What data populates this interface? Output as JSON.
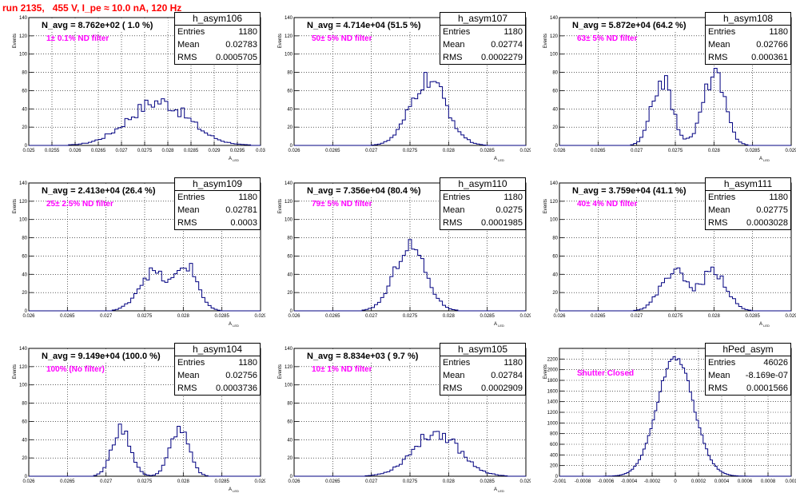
{
  "run_title": "run 2135,   455 V, I_pe ≈ 10.0 nA, 120 Hz",
  "colors": {
    "hist": "#000080",
    "label": "#ff00ff",
    "title": "#ff0000"
  },
  "stats_labels": {
    "entries": "Entries",
    "mean": "Mean",
    "rms": "RMS"
  },
  "chart_data": [
    {
      "type": "histogram",
      "name": "h_asym106",
      "title": "N_avg = 8.762e+02 ( 1.0 %)",
      "label": "1± 0.1% ND filter",
      "stats": {
        "entries": "1180",
        "mean": "0.02783",
        "rms": "0.0005705"
      },
      "xlabel": "A_{LED}",
      "ylabel": "Events",
      "xlim": [
        0.025,
        0.03
      ],
      "ylim": [
        0,
        140
      ],
      "xticks": [
        "0.025",
        "0.0255",
        "0.026",
        "0.0265",
        "0.027",
        "0.0275",
        "0.028",
        "0.0285",
        "0.029",
        "0.0295",
        "0.03"
      ],
      "yticks": [
        "0",
        "20",
        "40",
        "60",
        "80",
        "100",
        "120",
        "140"
      ],
      "center": 0.0278,
      "sigma": 0.00065,
      "peak": 48,
      "noise": 0.18,
      "bins": 70
    },
    {
      "type": "histogram",
      "name": "h_asym107",
      "title": "N_avg = 4.714e+04 (51.5 %)",
      "label": "50± 5% ND filter",
      "stats": {
        "entries": "1180",
        "mean": "0.02774",
        "rms": "0.0002279"
      },
      "xlabel": "A_{LED}",
      "ylabel": "Events",
      "xlim": [
        0.026,
        0.029
      ],
      "ylim": [
        0,
        140
      ],
      "xticks": [
        "0.026",
        "0.0265",
        "0.027",
        "0.0275",
        "0.028",
        "0.0285",
        "0.029"
      ],
      "yticks": [
        "0",
        "20",
        "40",
        "60",
        "80",
        "100",
        "120",
        "140"
      ],
      "center": 0.02774,
      "sigma": 0.00023,
      "peak": 72,
      "noise": 0.15,
      "bins": 75
    },
    {
      "type": "histogram",
      "name": "h_asym108",
      "title": "N_avg = 5.872e+04 (64.2 %)",
      "label": "63± 5% ND filter",
      "stats": {
        "entries": "1180",
        "mean": "0.02766",
        "rms": "0.000361"
      },
      "xlabel": "A_{LED}",
      "ylabel": "Events",
      "xlim": [
        0.026,
        0.029
      ],
      "ylim": [
        0,
        140
      ],
      "xticks": [
        "0.026",
        "0.0265",
        "0.027",
        "0.0275",
        "0.028",
        "0.0285",
        "0.029"
      ],
      "yticks": [
        "0",
        "20",
        "40",
        "60",
        "80",
        "100",
        "120",
        "140"
      ],
      "peaks": [
        {
          "c": 0.02733,
          "s": 0.00013,
          "h": 72
        },
        {
          "c": 0.028,
          "s": 0.00014,
          "h": 78
        }
      ],
      "noise": 0.15,
      "bins": 75
    },
    {
      "type": "histogram",
      "name": "h_asym109",
      "title": "N_avg = 2.413e+04 (26.4 %)",
      "label": "25± 2.5% ND filter",
      "stats": {
        "entries": "1180",
        "mean": "0.02781",
        "rms": "0.0003"
      },
      "xlabel": "A_{LED}",
      "ylabel": "Events",
      "xlim": [
        0.026,
        0.029
      ],
      "ylim": [
        0,
        140
      ],
      "xticks": [
        "0.026",
        "0.0265",
        "0.027",
        "0.0275",
        "0.028",
        "0.0285",
        "0.029"
      ],
      "yticks": [
        "0",
        "20",
        "40",
        "60",
        "80",
        "100",
        "120",
        "140"
      ],
      "peaks": [
        {
          "c": 0.0276,
          "s": 0.00018,
          "h": 42
        },
        {
          "c": 0.02805,
          "s": 0.00014,
          "h": 48
        }
      ],
      "noise": 0.15,
      "bins": 75
    },
    {
      "type": "histogram",
      "name": "h_asym110",
      "title": "N_avg = 7.356e+04 (80.4 %)",
      "label": "79± 5% ND filter",
      "stats": {
        "entries": "1180",
        "mean": "0.0275",
        "rms": "0.0001985"
      },
      "xlabel": "A_{LED}",
      "ylabel": "Events",
      "xlim": [
        0.026,
        0.029
      ],
      "ylim": [
        0,
        140
      ],
      "xticks": [
        "0.026",
        "0.0265",
        "0.027",
        "0.0275",
        "0.028",
        "0.0285",
        "0.029"
      ],
      "yticks": [
        "0",
        "20",
        "40",
        "60",
        "80",
        "100",
        "120",
        "140"
      ],
      "center": 0.0275,
      "sigma": 0.0002,
      "peak": 72,
      "noise": 0.12,
      "bins": 75
    },
    {
      "type": "histogram",
      "name": "h_asym111",
      "title": "N_avg = 3.759e+04 (41.1 %)",
      "label": "40± 4% ND filter",
      "stats": {
        "entries": "1180",
        "mean": "0.02775",
        "rms": "0.0003028"
      },
      "xlabel": "A_{LED}",
      "ylabel": "Events",
      "xlim": [
        0.026,
        0.029
      ],
      "ylim": [
        0,
        140
      ],
      "xticks": [
        "0.026",
        "0.0265",
        "0.027",
        "0.0275",
        "0.028",
        "0.0285",
        "0.029"
      ],
      "yticks": [
        "0",
        "20",
        "40",
        "60",
        "80",
        "100",
        "120",
        "140"
      ],
      "peaks": [
        {
          "c": 0.02748,
          "s": 0.00017,
          "h": 44
        },
        {
          "c": 0.028,
          "s": 0.00016,
          "h": 44
        }
      ],
      "noise": 0.15,
      "bins": 75
    },
    {
      "type": "histogram",
      "name": "h_asym104",
      "title": "N_avg = 9.149e+04 (100.0 %)",
      "label": "100% (No filter)",
      "stats": {
        "entries": "1180",
        "mean": "0.02756",
        "rms": "0.0003736"
      },
      "xlabel": "A_{LED}",
      "ylabel": "Events",
      "xlim": [
        0.026,
        0.029
      ],
      "ylim": [
        0,
        140
      ],
      "xticks": [
        "0.026",
        "0.0265",
        "0.027",
        "0.0275",
        "0.028",
        "0.0285",
        "0.029"
      ],
      "yticks": [
        "0",
        "20",
        "40",
        "60",
        "80",
        "100",
        "120",
        "140"
      ],
      "peaks": [
        {
          "c": 0.0272,
          "s": 0.00012,
          "h": 52
        },
        {
          "c": 0.02795,
          "s": 0.00012,
          "h": 52
        }
      ],
      "noise": 0.12,
      "bins": 75
    },
    {
      "type": "histogram",
      "name": "h_asym105",
      "title": "N_avg = 8.834e+03 ( 9.7 %)",
      "label": "10± 1% ND filter",
      "stats": {
        "entries": "1180",
        "mean": "0.02784",
        "rms": "0.0002909"
      },
      "xlabel": "A_{LED}",
      "ylabel": "Events",
      "xlim": [
        0.026,
        0.029
      ],
      "ylim": [
        0,
        140
      ],
      "xticks": [
        "0.026",
        "0.0265",
        "0.027",
        "0.0275",
        "0.028",
        "0.0285",
        "0.029"
      ],
      "yticks": [
        "0",
        "20",
        "40",
        "60",
        "80",
        "100",
        "120",
        "140"
      ],
      "center": 0.02784,
      "sigma": 0.0003,
      "peak": 48,
      "noise": 0.15,
      "bins": 75
    },
    {
      "type": "histogram",
      "name": "hPed_asym",
      "title": "",
      "label": "Shutter Closed",
      "stats": {
        "entries": "46026",
        "mean": "-8.169e-07",
        "rms": "0.0001566"
      },
      "xlabel": "",
      "ylabel": "Events",
      "xlim": [
        -0.001,
        0.001
      ],
      "ylim": [
        0,
        2400
      ],
      "xticks": [
        "-0.001",
        "-0.0008",
        "-0.0006",
        "-0.0004",
        "-0.0002",
        "0",
        "0.0002",
        "0.0004",
        "0.0006",
        "0.0008",
        "0.001"
      ],
      "yticks": [
        "0",
        "200",
        "400",
        "600",
        "800",
        "1000",
        "1200",
        "1400",
        "1600",
        "1800",
        "2000",
        "2200"
      ],
      "center": 0.0,
      "sigma": 0.000156,
      "peak": 2240,
      "noise": 0.03,
      "bins": 100
    }
  ]
}
